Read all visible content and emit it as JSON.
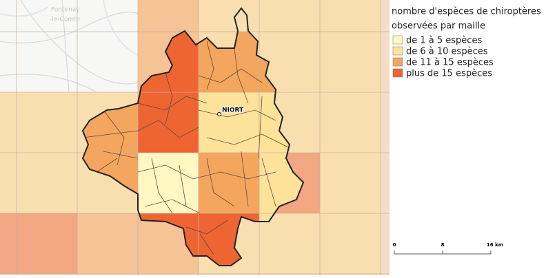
{
  "map": {
    "legend": {
      "title_lines": [
        "nombre d'espèces de chiroptères",
        "observées par maille"
      ],
      "items": [
        {
          "name": "de 1 à 5 espèces",
          "color": "#fff8c2"
        },
        {
          "name": "de 6 à 10 espèces",
          "color": "#fde29a"
        },
        {
          "name": "de 11 à 15 espèces",
          "color": "#f4a55e"
        },
        {
          "name": "plus de 15 espèces",
          "color": "#ee6433"
        }
      ]
    },
    "places": [
      {
        "label": "NIORT"
      }
    ],
    "basemap_labels": [
      "Fontenay",
      "-le-Comte"
    ],
    "scale_bar": {
      "labels": [
        "0",
        "8",
        "16 km"
      ]
    }
  }
}
